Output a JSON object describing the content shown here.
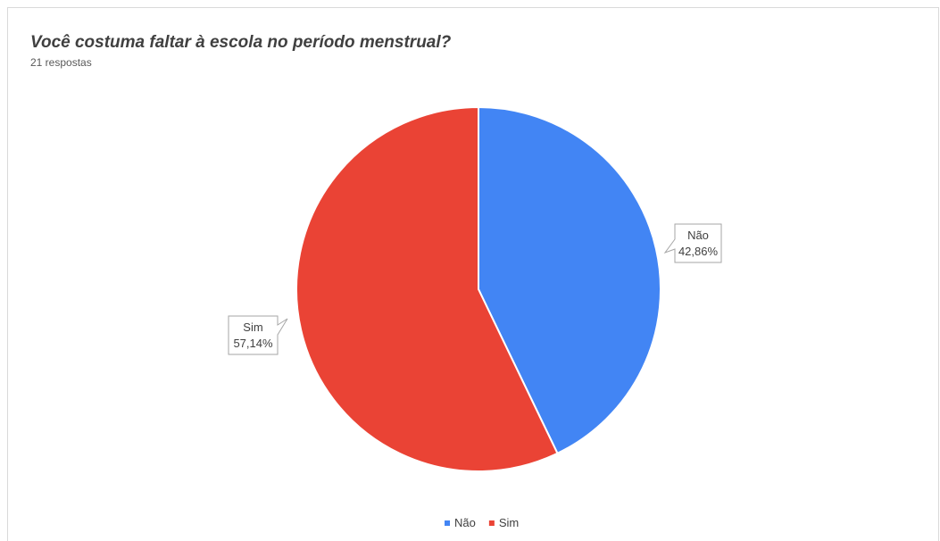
{
  "header": {
    "title": "Você costuma faltar à escola no período menstrual?",
    "subtitle": "21 respostas"
  },
  "chart_data": {
    "type": "pie",
    "title": "Você costuma faltar à escola no período menstrual?",
    "subtitle": "21 respostas",
    "start_angle_deg": 0,
    "direction": "clockwise",
    "slices": [
      {
        "label": "Não",
        "value": 42.86,
        "value_label": "42,86%",
        "color": "#4285f4"
      },
      {
        "label": "Sim",
        "value": 57.14,
        "value_label": "57,14%",
        "color": "#ea4335"
      }
    ],
    "legend": {
      "position": "bottom",
      "entries": [
        "Não",
        "Sim"
      ]
    }
  }
}
